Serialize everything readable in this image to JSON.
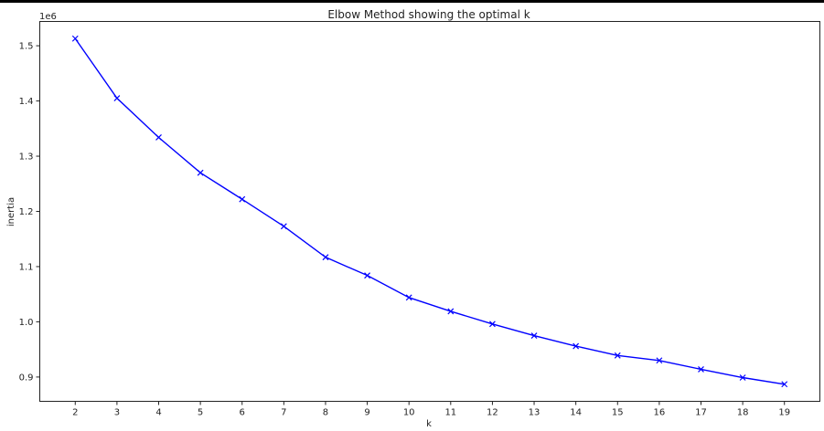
{
  "chart_data": {
    "type": "line",
    "title": "Elbow Method showing the optimal k",
    "xlabel": "k",
    "ylabel": "inertia",
    "offset_label": "1e6",
    "x": [
      2,
      3,
      4,
      5,
      6,
      7,
      8,
      9,
      10,
      11,
      12,
      13,
      14,
      15,
      16,
      17,
      18,
      19
    ],
    "series": [
      {
        "values": [
          1.513,
          1.405,
          1.334,
          1.27,
          1.222,
          1.173,
          1.117,
          1.084,
          1.044,
          1.019,
          0.996,
          0.975,
          0.956,
          0.939,
          0.93,
          0.914,
          0.899,
          0.887
        ],
        "color": "#0000ff",
        "marker": "x"
      }
    ],
    "xticks": [
      2,
      3,
      4,
      5,
      6,
      7,
      8,
      9,
      10,
      11,
      12,
      13,
      14,
      15,
      16,
      17,
      18,
      19
    ],
    "yticks": [
      "0.9",
      "1.0",
      "1.1",
      "1.2",
      "1.3",
      "1.4",
      "1.5"
    ],
    "ytick_values": [
      0.9,
      1.0,
      1.1,
      1.2,
      1.3,
      1.4,
      1.5
    ],
    "xlim": [
      1.15,
      19.85
    ],
    "ylim": [
      0.856,
      1.544
    ],
    "grid": false
  }
}
